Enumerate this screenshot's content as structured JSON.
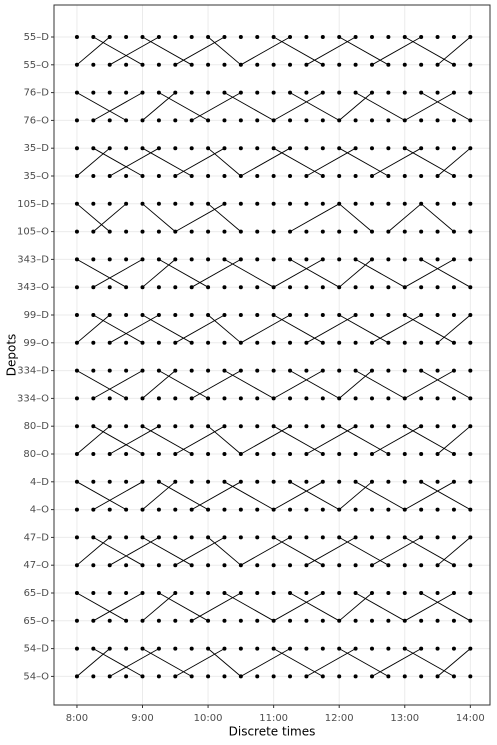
{
  "chart_data": {
    "type": "scatter",
    "xlabel": "Discrete times",
    "ylabel": "Depots",
    "categories": [
      "55–D",
      "55–O",
      "76–D",
      "76–O",
      "35–D",
      "35–O",
      "105–D",
      "105–O",
      "343–D",
      "343–O",
      "99–D",
      "99–O",
      "334–D",
      "334–O",
      "80–D",
      "80–O",
      "4–D",
      "4–O",
      "47–D",
      "47–O",
      "65–D",
      "65–O",
      "54–D",
      "54–O"
    ],
    "x": [
      8,
      8.25,
      8.5,
      8.75,
      9,
      9.25,
      9.5,
      9.75,
      10,
      10.25,
      10.5,
      10.75,
      11,
      11.25,
      11.5,
      11.75,
      12,
      12.25,
      12.5,
      12.75,
      13,
      13.25,
      13.5,
      13.75,
      14
    ],
    "xlim": [
      7.65,
      14.3
    ],
    "xticks": [
      {
        "value": 8,
        "label": "8:00"
      },
      {
        "value": 9,
        "label": "9:00"
      },
      {
        "value": 10,
        "label": "10:00"
      },
      {
        "value": 11,
        "label": "11:00"
      },
      {
        "value": 12,
        "label": "12:00"
      },
      {
        "value": 13,
        "label": "13:00"
      },
      {
        "value": 14,
        "label": "14:00"
      }
    ],
    "color": "#000000",
    "grid": true,
    "segments": [
      [
        8,
        "55–O",
        8.5,
        "55–D"
      ],
      [
        8.25,
        "55–D",
        9,
        "55–O"
      ],
      [
        8.5,
        "55–O",
        9.25,
        "55–D"
      ],
      [
        9,
        "55–D",
        9.75,
        "55–O"
      ],
      [
        9.5,
        "55–O",
        10.25,
        "55–D"
      ],
      [
        10,
        "55–D",
        10.5,
        "55–O"
      ],
      [
        10.5,
        "55–O",
        11.25,
        "55–D"
      ],
      [
        11,
        "55–D",
        11.75,
        "55–O"
      ],
      [
        11.5,
        "55–O",
        12.25,
        "55–D"
      ],
      [
        12,
        "55–D",
        12.75,
        "55–O"
      ],
      [
        12.5,
        "55–O",
        13.25,
        "55–D"
      ],
      [
        13,
        "55–D",
        13.75,
        "55–O"
      ],
      [
        13.5,
        "55–O",
        14,
        "55–D"
      ],
      [
        8.25,
        "76–O",
        9,
        "76–D"
      ],
      [
        8,
        "76–D",
        8.75,
        "76–O"
      ],
      [
        9,
        "76–O",
        9.5,
        "76–D"
      ],
      [
        9.25,
        "76–D",
        10,
        "76–O"
      ],
      [
        9.75,
        "76–O",
        10.5,
        "76–D"
      ],
      [
        10.25,
        "76–D",
        11,
        "76–O"
      ],
      [
        11,
        "76–O",
        11.75,
        "76–D"
      ],
      [
        11.25,
        "76–D",
        12,
        "76–O"
      ],
      [
        12,
        "76–O",
        12.5,
        "76–D"
      ],
      [
        12.25,
        "76–D",
        13,
        "76–O"
      ],
      [
        13,
        "76–O",
        13.75,
        "76–D"
      ],
      [
        13.25,
        "76–D",
        14,
        "76–O"
      ],
      [
        8,
        "35–O",
        8.5,
        "35–D"
      ],
      [
        8.25,
        "35–D",
        9,
        "35–O"
      ],
      [
        8.5,
        "35–O",
        9.25,
        "35–D"
      ],
      [
        9,
        "35–D",
        9.75,
        "35–O"
      ],
      [
        9.5,
        "35–O",
        10.25,
        "35–D"
      ],
      [
        10,
        "35–D",
        10.5,
        "35–O"
      ],
      [
        10.5,
        "35–O",
        11.25,
        "35–D"
      ],
      [
        11,
        "35–D",
        11.75,
        "35–O"
      ],
      [
        11.5,
        "35–O",
        12.25,
        "35–D"
      ],
      [
        12,
        "35–D",
        12.75,
        "35–O"
      ],
      [
        12.5,
        "35–O",
        13.25,
        "35–D"
      ],
      [
        13,
        "35–D",
        13.75,
        "35–O"
      ],
      [
        13.5,
        "35–O",
        14,
        "35–D"
      ],
      [
        8,
        "105–D",
        8.5,
        "105–O"
      ],
      [
        8.25,
        "105–O",
        8.75,
        "105–D"
      ],
      [
        9,
        "105–D",
        9.5,
        "105–O"
      ],
      [
        9.5,
        "105–O",
        10.25,
        "105–D"
      ],
      [
        10,
        "105–D",
        10.5,
        "105–O"
      ],
      [
        11.25,
        "105–O",
        12,
        "105–D"
      ],
      [
        12,
        "105–D",
        12.5,
        "105–O"
      ],
      [
        12.75,
        "105–O",
        13.25,
        "105–D"
      ],
      [
        13.25,
        "105–D",
        13.75,
        "105–O"
      ],
      [
        8.25,
        "343–O",
        9,
        "343–D"
      ],
      [
        8,
        "343–D",
        8.75,
        "343–O"
      ],
      [
        9,
        "343–O",
        9.5,
        "343–D"
      ],
      [
        9.25,
        "343–D",
        10,
        "343–O"
      ],
      [
        9.75,
        "343–O",
        10.5,
        "343–D"
      ],
      [
        10.25,
        "343–D",
        11,
        "343–O"
      ],
      [
        11,
        "343–O",
        11.75,
        "343–D"
      ],
      [
        11.25,
        "343–D",
        12,
        "343–O"
      ],
      [
        12,
        "343–O",
        12.5,
        "343–D"
      ],
      [
        12.25,
        "343–D",
        13,
        "343–O"
      ],
      [
        13,
        "343–O",
        13.75,
        "343–D"
      ],
      [
        13.25,
        "343–D",
        14,
        "343–O"
      ],
      [
        8,
        "99–O",
        8.5,
        "99–D"
      ],
      [
        8.25,
        "99–D",
        9,
        "99–O"
      ],
      [
        8.5,
        "99–O",
        9.25,
        "99–D"
      ],
      [
        9,
        "99–D",
        9.75,
        "99–O"
      ],
      [
        9.5,
        "99–O",
        10.25,
        "99–D"
      ],
      [
        10,
        "99–D",
        10.5,
        "99–O"
      ],
      [
        10.5,
        "99–O",
        11.25,
        "99–D"
      ],
      [
        11,
        "99–D",
        11.75,
        "99–O"
      ],
      [
        11.5,
        "99–O",
        12.25,
        "99–D"
      ],
      [
        12,
        "99–D",
        12.75,
        "99–O"
      ],
      [
        12.5,
        "99–O",
        13.25,
        "99–D"
      ],
      [
        13,
        "99–D",
        13.75,
        "99–O"
      ],
      [
        13.5,
        "99–O",
        14,
        "99–D"
      ],
      [
        8.25,
        "334–O",
        9,
        "334–D"
      ],
      [
        8,
        "334–D",
        8.75,
        "334–O"
      ],
      [
        9,
        "334–O",
        9.5,
        "334–D"
      ],
      [
        9.25,
        "334–D",
        10,
        "334–O"
      ],
      [
        9.75,
        "334–O",
        10.5,
        "334–D"
      ],
      [
        10.25,
        "334–D",
        11,
        "334–O"
      ],
      [
        11,
        "334–O",
        11.75,
        "334–D"
      ],
      [
        11.25,
        "334–D",
        12,
        "334–O"
      ],
      [
        12,
        "334–O",
        12.5,
        "334–D"
      ],
      [
        12.25,
        "334–D",
        13,
        "334–O"
      ],
      [
        13,
        "334–O",
        13.75,
        "334–D"
      ],
      [
        13.25,
        "334–D",
        14,
        "334–O"
      ],
      [
        8,
        "80–O",
        8.5,
        "80–D"
      ],
      [
        8.25,
        "80–D",
        9,
        "80–O"
      ],
      [
        8.5,
        "80–O",
        9.25,
        "80–D"
      ],
      [
        9,
        "80–D",
        9.75,
        "80–O"
      ],
      [
        9.5,
        "80–O",
        10.25,
        "80–D"
      ],
      [
        10,
        "80–D",
        10.5,
        "80–O"
      ],
      [
        10.5,
        "80–O",
        11.25,
        "80–D"
      ],
      [
        11,
        "80–D",
        11.75,
        "80–O"
      ],
      [
        11.5,
        "80–O",
        12.25,
        "80–D"
      ],
      [
        12,
        "80–D",
        12.75,
        "80–O"
      ],
      [
        12.5,
        "80–O",
        13.25,
        "80–D"
      ],
      [
        13,
        "80–D",
        13.75,
        "80–O"
      ],
      [
        13.5,
        "80–O",
        14,
        "80–D"
      ],
      [
        8.25,
        "4–O",
        9,
        "4–D"
      ],
      [
        8,
        "4–D",
        8.75,
        "4–O"
      ],
      [
        9,
        "4–O",
        9.5,
        "4–D"
      ],
      [
        9.25,
        "4–D",
        10,
        "4–O"
      ],
      [
        9.75,
        "4–O",
        10.5,
        "4–D"
      ],
      [
        10.25,
        "4–D",
        11,
        "4–O"
      ],
      [
        11,
        "4–O",
        11.75,
        "4–D"
      ],
      [
        11.25,
        "4–D",
        12,
        "4–O"
      ],
      [
        12,
        "4–O",
        12.5,
        "4–D"
      ],
      [
        12.25,
        "4–D",
        13,
        "4–O"
      ],
      [
        13,
        "4–O",
        13.75,
        "4–D"
      ],
      [
        13.25,
        "4–D",
        14,
        "4–O"
      ],
      [
        8,
        "47–O",
        8.5,
        "47–D"
      ],
      [
        8.25,
        "47–D",
        9,
        "47–O"
      ],
      [
        8.5,
        "47–O",
        9.25,
        "47–D"
      ],
      [
        9,
        "47–D",
        9.75,
        "47–O"
      ],
      [
        9.5,
        "47–O",
        10.25,
        "47–D"
      ],
      [
        10,
        "47–D",
        10.5,
        "47–O"
      ],
      [
        10.5,
        "47–O",
        11.25,
        "47–D"
      ],
      [
        11,
        "47–D",
        11.75,
        "47–O"
      ],
      [
        11.5,
        "47–O",
        12.25,
        "47–D"
      ],
      [
        12,
        "47–D",
        12.75,
        "47–O"
      ],
      [
        12.5,
        "47–O",
        13.25,
        "47–D"
      ],
      [
        13,
        "47–D",
        13.75,
        "47–O"
      ],
      [
        13.5,
        "47–O",
        14,
        "47–D"
      ],
      [
        8.25,
        "65–O",
        9,
        "65–D"
      ],
      [
        8,
        "65–D",
        8.75,
        "65–O"
      ],
      [
        9,
        "65–O",
        9.5,
        "65–D"
      ],
      [
        9.25,
        "65–D",
        10,
        "65–O"
      ],
      [
        9.75,
        "65–O",
        10.5,
        "65–D"
      ],
      [
        10.25,
        "65–D",
        11,
        "65–O"
      ],
      [
        11,
        "65–O",
        11.75,
        "65–D"
      ],
      [
        11.25,
        "65–D",
        12,
        "65–O"
      ],
      [
        12,
        "65–O",
        12.5,
        "65–D"
      ],
      [
        12.25,
        "65–D",
        13,
        "65–O"
      ],
      [
        13,
        "65–O",
        13.75,
        "65–D"
      ],
      [
        13.25,
        "65–D",
        14,
        "65–O"
      ],
      [
        8,
        "54–O",
        8.5,
        "54–D"
      ],
      [
        8.25,
        "54–D",
        9,
        "54–O"
      ],
      [
        8.5,
        "54–O",
        9.25,
        "54–D"
      ],
      [
        9,
        "54–D",
        9.75,
        "54–O"
      ],
      [
        9.5,
        "54–O",
        10.25,
        "54–D"
      ],
      [
        10,
        "54–D",
        10.5,
        "54–O"
      ],
      [
        10.5,
        "54–O",
        11.25,
        "54–D"
      ],
      [
        11,
        "54–D",
        11.75,
        "54–O"
      ],
      [
        11.5,
        "54–O",
        12.25,
        "54–D"
      ],
      [
        12,
        "54–D",
        12.75,
        "54–O"
      ],
      [
        12.5,
        "54–O",
        13.25,
        "54–D"
      ],
      [
        13,
        "54–D",
        13.75,
        "54–O"
      ],
      [
        13.5,
        "54–O",
        14,
        "54–D"
      ]
    ]
  }
}
